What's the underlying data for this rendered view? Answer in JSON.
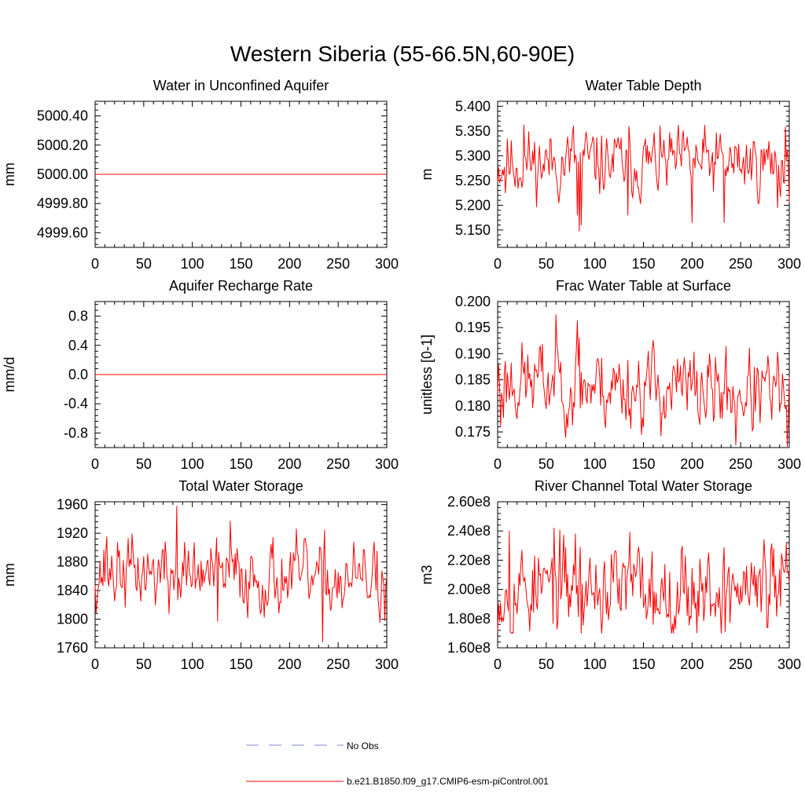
{
  "figure_title": "Western Siberia (55-66.5N,60-90E)",
  "legend": {
    "entries": [
      {
        "label": "No Obs",
        "style": "dashed",
        "color": "#7f84c8"
      },
      {
        "label": "b.e21.B1850.f09_g17.CMIP6-esm-piControl.001",
        "style": "solid",
        "color": "#ff0000"
      }
    ]
  },
  "chart_data": [
    {
      "type": "line",
      "title": "Water in Unconfined Aquifer",
      "ylabel": "mm",
      "xlabel": "",
      "xlim": [
        0,
        300
      ],
      "ylim": [
        4999.5,
        5000.5
      ],
      "xticks": [
        0,
        50,
        100,
        150,
        200,
        250,
        300
      ],
      "yticks": [
        4999.6,
        4999.8,
        5000.0,
        5000.2,
        5000.4
      ],
      "ytick_labels": [
        "4999.60",
        "4999.80",
        "5000.00",
        "5000.20",
        "5000.40"
      ],
      "series": [
        {
          "name": "b.e21.B1850.f09_g17.CMIP6-esm-piControl.001",
          "color": "#ff0000",
          "kind": "constant",
          "value": 5000.0
        }
      ]
    },
    {
      "type": "line",
      "title": "Water Table Depth",
      "ylabel": "m",
      "xlabel": "",
      "xlim": [
        0,
        300
      ],
      "ylim": [
        5.115,
        5.41
      ],
      "xticks": [
        0,
        50,
        100,
        150,
        200,
        250,
        300
      ],
      "yticks": [
        5.15,
        5.2,
        5.25,
        5.3,
        5.35,
        5.4
      ],
      "ytick_labels": [
        "5.150",
        "5.200",
        "5.250",
        "5.300",
        "5.350",
        "5.400"
      ],
      "series": [
        {
          "name": "b.e21.B1850.f09_g17.CMIP6-esm-piControl.001",
          "color": "#ff0000",
          "kind": "noise",
          "mean": 5.285,
          "amp": 0.03,
          "min": 5.148,
          "max": 5.362,
          "seed": 11,
          "features": [
            {
              "x": 84,
              "y": 5.148
            },
            {
              "x": 86,
              "y": 5.16
            },
            {
              "x": 82,
              "y": 5.18
            },
            {
              "x": 78,
              "y": 5.36
            },
            {
              "x": 27,
              "y": 5.362
            },
            {
              "x": 134,
              "y": 5.18
            },
            {
              "x": 200,
              "y": 5.165
            },
            {
              "x": 233,
              "y": 5.165
            },
            {
              "x": 288,
              "y": 5.195
            },
            {
              "x": 296,
              "y": 5.358
            },
            {
              "x": 8,
              "y": 5.225
            }
          ]
        }
      ]
    },
    {
      "type": "line",
      "title": "Aquifer Recharge Rate",
      "ylabel": "mm/d",
      "xlabel": "",
      "xlim": [
        0,
        300
      ],
      "ylim": [
        -1.0,
        1.0
      ],
      "xticks": [
        0,
        50,
        100,
        150,
        200,
        250,
        300
      ],
      "yticks": [
        -0.8,
        -0.4,
        0.0,
        0.4,
        0.8
      ],
      "ytick_labels": [
        "-0.8",
        "-0.4",
        "0.0",
        "0.4",
        "0.8"
      ],
      "series": [
        {
          "name": "b.e21.B1850.f09_g17.CMIP6-esm-piControl.001",
          "color": "#ff0000",
          "kind": "constant",
          "value": 0.0
        }
      ]
    },
    {
      "type": "line",
      "title": "Frac Water Table at Surface",
      "ylabel": "unitless [0-1]",
      "xlabel": "",
      "xlim": [
        0,
        300
      ],
      "ylim": [
        0.172,
        0.2
      ],
      "xticks": [
        0,
        50,
        100,
        150,
        200,
        250,
        300
      ],
      "yticks": [
        0.175,
        0.18,
        0.185,
        0.19,
        0.195,
        0.2
      ],
      "ytick_labels": [
        "0.175",
        "0.180",
        "0.185",
        "0.190",
        "0.195",
        "0.200"
      ],
      "series": [
        {
          "name": "b.e21.B1850.f09_g17.CMIP6-esm-piControl.001",
          "color": "#ff0000",
          "kind": "noise",
          "mean": 0.1835,
          "amp": 0.0035,
          "min": 0.1722,
          "max": 0.1975,
          "trend": -0.003,
          "seed": 23,
          "features": [
            {
              "x": 60,
              "y": 0.1975
            },
            {
              "x": 69,
              "y": 0.176
            },
            {
              "x": 82,
              "y": 0.1963
            },
            {
              "x": 84,
              "y": 0.193
            },
            {
              "x": 155,
              "y": 0.1905
            },
            {
              "x": 245,
              "y": 0.1725
            },
            {
              "x": 298,
              "y": 0.1722
            },
            {
              "x": 3,
              "y": 0.176
            }
          ]
        }
      ]
    },
    {
      "type": "line",
      "title": "Total Water Storage",
      "ylabel": "mm",
      "xlabel": "",
      "xlim": [
        0,
        300
      ],
      "ylim": [
        1760,
        1964
      ],
      "xticks": [
        0,
        50,
        100,
        150,
        200,
        250,
        300
      ],
      "yticks": [
        1760,
        1800,
        1840,
        1880,
        1920,
        1960
      ],
      "ytick_labels": [
        "1760",
        "1800",
        "1840",
        "1880",
        "1920",
        "1960"
      ],
      "series": [
        {
          "name": "b.e21.B1850.f09_g17.CMIP6-esm-piControl.001",
          "color": "#ff0000",
          "kind": "noise",
          "mean": 1860,
          "amp": 22,
          "min": 1768,
          "max": 1958,
          "trend": -15,
          "seed": 37,
          "features": [
            {
              "x": 84,
              "y": 1958
            },
            {
              "x": 12,
              "y": 1915
            },
            {
              "x": 139,
              "y": 1937
            },
            {
              "x": 234,
              "y": 1768
            },
            {
              "x": 126,
              "y": 1797
            },
            {
              "x": 76,
              "y": 1808
            },
            {
              "x": 290,
              "y": 1895
            },
            {
              "x": 298,
              "y": 1798
            }
          ]
        }
      ]
    },
    {
      "type": "line",
      "title": "River Channel Total Water Storage",
      "ylabel": "m3",
      "xlabel": "",
      "xlim": [
        0,
        300
      ],
      "ylim": [
        160000000,
        260000000
      ],
      "xticks": [
        0,
        50,
        100,
        150,
        200,
        250,
        300
      ],
      "yticks": [
        160000000,
        180000000,
        200000000,
        220000000,
        240000000,
        260000000
      ],
      "ytick_labels": [
        "1.60e8",
        "1.80e8",
        "2.00e8",
        "2.20e8",
        "2.40e8",
        "2.60e8"
      ],
      "series": [
        {
          "name": "b.e21.B1850.f09_g17.CMIP6-esm-piControl.001",
          "color": "#ff0000",
          "kind": "noise",
          "mean": 201000000,
          "amp": 14000000,
          "min": 170000000,
          "max": 242000000,
          "seed": 53,
          "features": [
            {
              "x": 58,
              "y": 242000000
            },
            {
              "x": 12,
              "y": 240000000
            },
            {
              "x": 136,
              "y": 239000000
            },
            {
              "x": 80,
              "y": 238000000
            },
            {
              "x": 234,
              "y": 171000000
            },
            {
              "x": 86,
              "y": 170000000
            },
            {
              "x": 284,
              "y": 228000000
            },
            {
              "x": 160,
              "y": 176000000
            }
          ]
        }
      ]
    }
  ]
}
